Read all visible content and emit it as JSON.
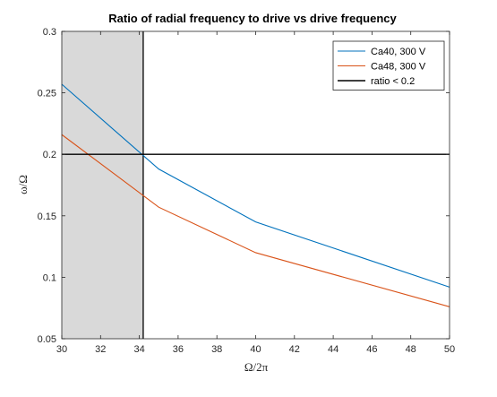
{
  "chart_data": {
    "type": "line",
    "title": "Ratio of radial frequency to drive vs drive frequency",
    "xlabel": "Ω/2π",
    "ylabel": "ω/Ω",
    "xlim": [
      30,
      50
    ],
    "ylim": [
      0.05,
      0.3
    ],
    "xticks": [
      30,
      32,
      34,
      36,
      38,
      40,
      42,
      44,
      46,
      48,
      50
    ],
    "yticks": [
      0.05,
      0.1,
      0.15,
      0.2,
      0.25,
      0.3
    ],
    "ytick_labels": [
      "0.05",
      "0.1",
      "0.15",
      "0.2",
      "0.25",
      "0.3"
    ],
    "grid": false,
    "legend_position": "top-right",
    "series": [
      {
        "name": "Ca40, 300 V",
        "color": "#0072BD",
        "x": [
          30,
          35,
          40,
          50
        ],
        "y": [
          0.257,
          0.188,
          0.145,
          0.092
        ]
      },
      {
        "name": "Ca48, 300 V",
        "color": "#D95319",
        "x": [
          30,
          35,
          40,
          50
        ],
        "y": [
          0.216,
          0.157,
          0.12,
          0.076
        ]
      },
      {
        "name": "ratio < 0.2",
        "color": "#000000",
        "x": [
          30,
          50
        ],
        "y": [
          0.2,
          0.2
        ]
      }
    ],
    "shaded_region": {
      "x": [
        30,
        34.2
      ],
      "fill": "#d9d9d9",
      "edge_color": "#000000"
    }
  }
}
